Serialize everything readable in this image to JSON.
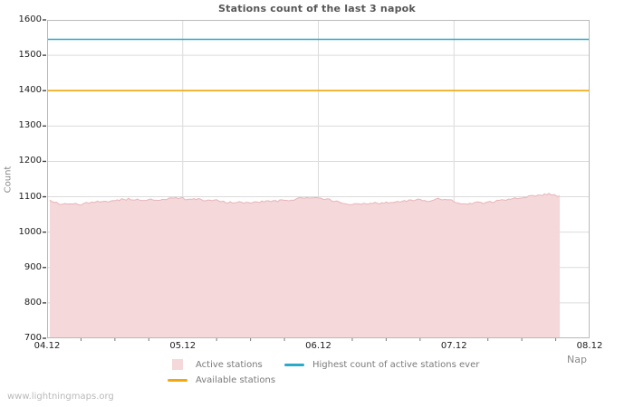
{
  "page": {
    "watermark": "www.lightningmaps.org"
  },
  "chart_data": {
    "type": "area",
    "title": "Stations count of the last 3 napok",
    "xlabel": "Nap",
    "ylabel": "Count",
    "x_tick_labels": [
      "04.12",
      "05.12",
      "06.12",
      "07.12",
      "08.12"
    ],
    "x_days_span": 4,
    "y_ticks": [
      700,
      800,
      900,
      1000,
      1100,
      1200,
      1300,
      1400,
      1500,
      1600
    ],
    "ylim": [
      700,
      1600
    ],
    "grid": true,
    "legend_position": "bottom",
    "colors": {
      "active_fill": "#f5d8da",
      "active_stroke": "#e7b5b9",
      "available": "#f0a80e",
      "highest": "#2aa9c9",
      "gridline": "#dcdcdc",
      "border": "#b9b9b9",
      "tick": "#444444"
    },
    "series": [
      {
        "name": "Active stations",
        "type": "area",
        "x_days": [
          0.02,
          0.05,
          0.09,
          0.13,
          0.17,
          0.21,
          0.25,
          0.29,
          0.33,
          0.37,
          0.41,
          0.45,
          0.5,
          0.55,
          0.6,
          0.65,
          0.7,
          0.75,
          0.8,
          0.85,
          0.9,
          0.95,
          1.0,
          1.05,
          1.1,
          1.15,
          1.2,
          1.25,
          1.3,
          1.35,
          1.4,
          1.45,
          1.5,
          1.55,
          1.6,
          1.65,
          1.7,
          1.75,
          1.8,
          1.85,
          1.9,
          1.95,
          2.0,
          2.05,
          2.1,
          2.15,
          2.2,
          2.25,
          2.3,
          2.35,
          2.4,
          2.45,
          2.5,
          2.55,
          2.6,
          2.65,
          2.7,
          2.75,
          2.8,
          2.85,
          2.9,
          2.95,
          3.0,
          3.05,
          3.1,
          3.15,
          3.2,
          3.25,
          3.3,
          3.35,
          3.4,
          3.45,
          3.5,
          3.55,
          3.6,
          3.65,
          3.7,
          3.74,
          3.78
        ],
        "values": [
          1091,
          1086,
          1081,
          1078,
          1077,
          1080,
          1078,
          1081,
          1085,
          1086,
          1084,
          1087,
          1089,
          1092,
          1094,
          1092,
          1090,
          1092,
          1089,
          1092,
          1094,
          1096,
          1095,
          1092,
          1094,
          1091,
          1089,
          1091,
          1087,
          1084,
          1086,
          1084,
          1082,
          1086,
          1088,
          1086,
          1089,
          1088,
          1091,
          1094,
          1098,
          1100,
          1097,
          1093,
          1090,
          1085,
          1080,
          1078,
          1077,
          1080,
          1083,
          1082,
          1085,
          1083,
          1086,
          1088,
          1090,
          1092,
          1089,
          1090,
          1095,
          1093,
          1087,
          1082,
          1081,
          1083,
          1082,
          1084,
          1087,
          1090,
          1092,
          1094,
          1097,
          1100,
          1102,
          1105,
          1107,
          1104,
          1102
        ]
      },
      {
        "name": "Available stations",
        "type": "hline",
        "value": 1400
      },
      {
        "name": "Highest count of active stations ever",
        "type": "hline",
        "value": 1545
      }
    ]
  }
}
